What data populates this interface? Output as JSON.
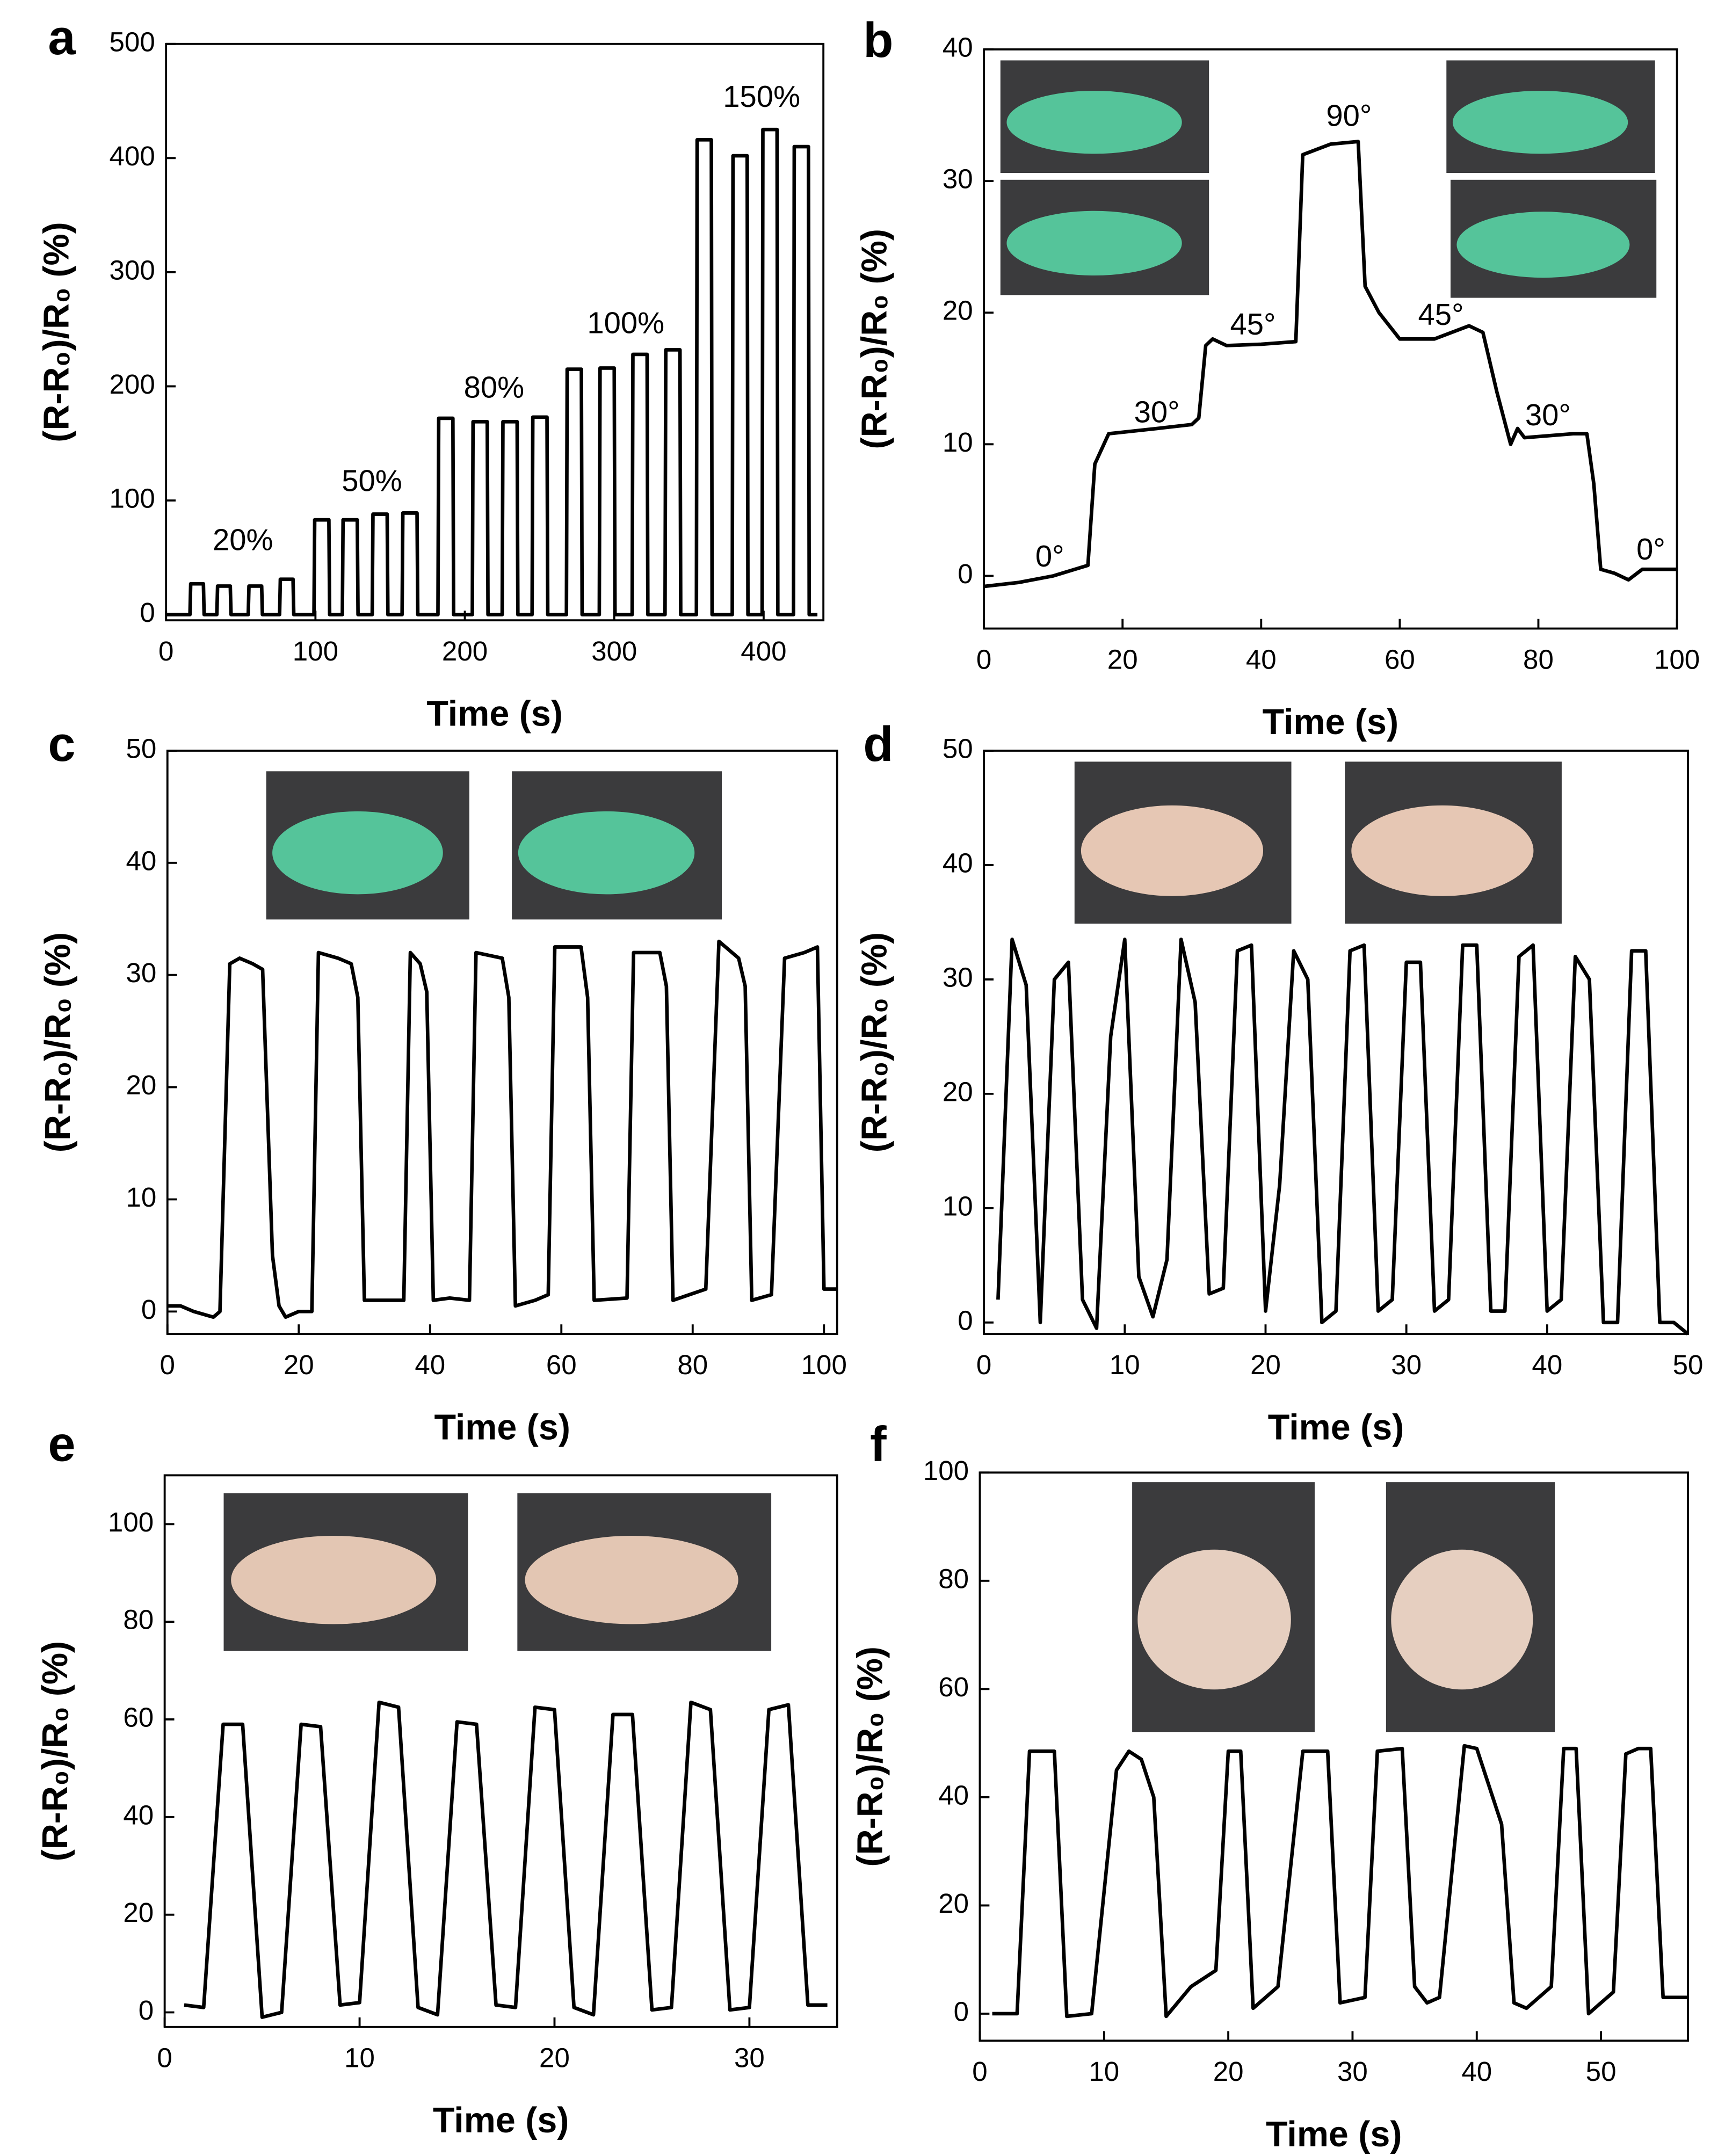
{
  "chart_data": [
    {
      "type": "line",
      "panel_label": "a",
      "xlabel": "Time (s)",
      "ylabel": "(R-R₀)/R₀ (%)",
      "xlim": [
        0,
        440
      ],
      "ylim": [
        -5,
        500
      ],
      "xticks": [
        0,
        100,
        200,
        300,
        400
      ],
      "yticks": [
        0,
        100,
        200,
        300,
        400,
        500
      ],
      "annotations": [
        "20%",
        "50%",
        "80%",
        "100%",
        "150%"
      ],
      "series": [
        {
          "color": "#000000",
          "x": [
            0,
            16,
            16.5,
            25,
            25.5,
            34,
            34.5,
            43,
            43.5,
            55,
            55.5,
            64,
            64.5,
            76,
            76.5,
            85,
            85.5,
            99,
            99.5,
            109,
            109.5,
            118,
            118.5,
            128,
            128.5,
            138,
            138.5,
            148,
            148.5,
            158,
            158.5,
            168,
            168.5,
            182,
            182.5,
            192,
            192.5,
            205,
            205.5,
            215,
            215.5,
            225,
            225.5,
            235,
            235.5,
            245,
            245.5,
            255,
            255.5,
            268,
            268.5,
            278,
            278.5,
            290,
            290.5,
            300,
            300.5,
            312,
            312.5,
            322,
            322.5,
            334,
            334.5,
            344,
            344.5,
            355,
            355.5,
            365,
            365.5,
            379,
            379.5,
            389,
            389.5,
            399,
            399.5,
            409,
            409.5,
            420,
            420.5,
            430,
            430.5,
            436
          ],
          "values": [
            0,
            0,
            27,
            27,
            0,
            0,
            25,
            25,
            0,
            0,
            25,
            25,
            0,
            0,
            31,
            31,
            0,
            0,
            83,
            83,
            0,
            0,
            83,
            83,
            0,
            0,
            88,
            88,
            0,
            0,
            89,
            89,
            0,
            0,
            172,
            172,
            0,
            0,
            169,
            169,
            0,
            0,
            169,
            169,
            0,
            0,
            173,
            173,
            0,
            0,
            215,
            215,
            0,
            0,
            216,
            216,
            0,
            0,
            228,
            228,
            0,
            0,
            232,
            232,
            0,
            0,
            416,
            416,
            0,
            0,
            402,
            402,
            0,
            0,
            425,
            425,
            0,
            0,
            410,
            410,
            0,
            0
          ]
        }
      ]
    },
    {
      "type": "line",
      "panel_label": "b",
      "xlabel": "Time (s)",
      "ylabel": "(R-R₀)/R₀ (%)",
      "xlim": [
        0,
        100
      ],
      "ylim": [
        -4,
        40
      ],
      "xticks": [
        0,
        20,
        40,
        60,
        80,
        100
      ],
      "yticks": [
        0,
        10,
        20,
        30,
        40
      ],
      "annotations": [
        "0°",
        "30°",
        "45°",
        "90°",
        "45°",
        "30°",
        "0°"
      ],
      "series": [
        {
          "color": "#000000",
          "x": [
            0,
            5,
            10,
            15,
            16,
            18,
            25,
            30,
            31,
            32,
            33,
            35,
            40,
            45,
            46,
            50,
            54,
            55,
            57,
            60,
            65,
            70,
            72,
            74,
            76,
            77,
            78,
            85,
            87,
            88,
            89,
            91,
            93,
            95,
            100
          ],
          "values": [
            -0.8,
            -0.5,
            0,
            0.8,
            8.5,
            10.8,
            11.2,
            11.5,
            12,
            17.5,
            18,
            17.5,
            17.6,
            17.8,
            32,
            32.8,
            33,
            22,
            20,
            18,
            18,
            19,
            18.5,
            14,
            10,
            11.2,
            10.5,
            10.8,
            10.8,
            7,
            0.5,
            0.2,
            -0.3,
            0.5,
            0.5
          ]
        }
      ]
    },
    {
      "type": "line",
      "panel_label": "c",
      "xlabel": "Time (s)",
      "ylabel": "(R-R₀)/R₀ (%)",
      "xlim": [
        0,
        102
      ],
      "ylim": [
        -2,
        50
      ],
      "xticks": [
        0,
        20,
        40,
        60,
        80,
        100
      ],
      "yticks": [
        0,
        10,
        20,
        30,
        40,
        50
      ],
      "series": [
        {
          "color": "#000000",
          "x": [
            0,
            2,
            4,
            7,
            8,
            9.5,
            11,
            13,
            14.5,
            16,
            17,
            18,
            20,
            22,
            23,
            26,
            28,
            29,
            30,
            33,
            36,
            37,
            38.5,
            39.5,
            40.5,
            43,
            46,
            47,
            51,
            52,
            53,
            56,
            58,
            59,
            63,
            64,
            65,
            70,
            71,
            75,
            76,
            77,
            82,
            84,
            87,
            88,
            89,
            92,
            94,
            97,
            99,
            100,
            102
          ],
          "values": [
            0.5,
            0.5,
            0,
            -0.5,
            0,
            31,
            31.5,
            31,
            30.5,
            5,
            0.5,
            -0.5,
            0,
            0,
            32,
            31.5,
            31,
            28,
            1,
            1,
            1,
            32,
            31,
            28.5,
            1,
            1.2,
            1,
            32,
            31.5,
            28,
            0.5,
            1,
            1.5,
            32.5,
            32.5,
            28,
            1,
            1.2,
            32,
            32,
            29,
            1,
            2,
            33,
            31.5,
            29,
            1,
            1.5,
            31.5,
            32,
            32.5,
            2,
            2
          ]
        }
      ]
    },
    {
      "type": "line",
      "panel_label": "d",
      "xlabel": "Time (s)",
      "ylabel": "(R-R₀)/R₀ (%)",
      "xlim": [
        0,
        50
      ],
      "ylim": [
        -1,
        50
      ],
      "xticks": [
        0,
        10,
        20,
        30,
        40,
        50
      ],
      "yticks": [
        0,
        10,
        20,
        30,
        40,
        50
      ],
      "series": [
        {
          "color": "#000000",
          "x": [
            1,
            2,
            3,
            4,
            5,
            6,
            7,
            8,
            9,
            10,
            11,
            12,
            13,
            14,
            15,
            16,
            17,
            18,
            19,
            20,
            21,
            22,
            23,
            24,
            25,
            26,
            27,
            28,
            29,
            30,
            31,
            32,
            33,
            34,
            35,
            36,
            37,
            38,
            39,
            40,
            41,
            42,
            43,
            44,
            45,
            46,
            47,
            48,
            49,
            50
          ],
          "values": [
            2,
            33.5,
            29.5,
            0,
            30,
            31.5,
            2,
            -0.5,
            25,
            33.5,
            4,
            0.5,
            5.5,
            33.5,
            28,
            2.5,
            3,
            32.5,
            33,
            1,
            12,
            32.5,
            30,
            0,
            1,
            32.5,
            33,
            1,
            2,
            31.5,
            31.5,
            1,
            2,
            33,
            33,
            1,
            1,
            32,
            33,
            1,
            2,
            32,
            30,
            0,
            0,
            32.5,
            32.5,
            0,
            0,
            -1
          ]
        }
      ]
    },
    {
      "type": "line",
      "panel_label": "e",
      "xlabel": "Time (s)",
      "ylabel": "(R-R₀)/R₀ (%)",
      "xlim": [
        0,
        34.5
      ],
      "ylim": [
        -3,
        110
      ],
      "xticks": [
        0,
        10,
        20,
        30
      ],
      "yticks": [
        0,
        20,
        40,
        60,
        80,
        100
      ],
      "series": [
        {
          "color": "#000000",
          "x": [
            1,
            2,
            3,
            4,
            5,
            6,
            7,
            8,
            9,
            10,
            11,
            12,
            13,
            14,
            15,
            16,
            17,
            18,
            19,
            20,
            21,
            22,
            23,
            24,
            25,
            26,
            27,
            28,
            29,
            30,
            31,
            32,
            33,
            34
          ],
          "values": [
            1.5,
            1,
            59,
            59,
            -1,
            0,
            59,
            58.5,
            1.5,
            2,
            63.5,
            62.5,
            1,
            -0.5,
            59.5,
            59,
            1.5,
            1,
            62.5,
            62,
            1,
            -0.5,
            61,
            61,
            0.5,
            1,
            63.5,
            62,
            0.5,
            1,
            62,
            63,
            1.5,
            1.5
          ]
        }
      ]
    },
    {
      "type": "line",
      "panel_label": "f",
      "xlabel": "Time (s)",
      "ylabel": "(R-R₀)/R₀ (%)",
      "xlim": [
        0,
        57
      ],
      "ylim": [
        -5,
        100
      ],
      "xticks": [
        0,
        10,
        20,
        30,
        40,
        50
      ],
      "yticks": [
        0,
        20,
        40,
        60,
        80,
        100
      ],
      "series": [
        {
          "color": "#000000",
          "x": [
            1,
            3,
            4,
            6,
            7,
            9,
            11,
            12,
            13,
            14,
            15,
            17,
            19,
            20,
            21,
            22,
            24,
            26,
            28,
            29,
            31,
            32,
            34,
            35,
            36,
            37,
            39,
            40,
            42,
            43,
            44,
            46,
            47,
            48,
            49,
            50,
            51,
            52,
            53,
            54,
            55,
            57
          ],
          "values": [
            0,
            0,
            48.5,
            48.5,
            -0.5,
            0,
            45,
            48.5,
            47,
            40,
            -0.5,
            5,
            8,
            48.5,
            48.5,
            1,
            5,
            48.5,
            48.5,
            2,
            3,
            48.5,
            49,
            5,
            2,
            3,
            49.5,
            49,
            35,
            2,
            1,
            5,
            49,
            49,
            0,
            2,
            4,
            48,
            49,
            49,
            3,
            3
          ]
        }
      ]
    }
  ]
}
